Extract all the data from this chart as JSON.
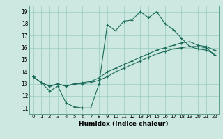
{
  "title": "",
  "xlabel": "Humidex (Indice chaleur)",
  "xlim": [
    -0.5,
    22.5
  ],
  "ylim": [
    10.5,
    19.5
  ],
  "xticks": [
    0,
    1,
    2,
    3,
    4,
    5,
    6,
    7,
    8,
    9,
    10,
    11,
    12,
    13,
    14,
    15,
    16,
    17,
    18,
    19,
    20,
    21,
    22
  ],
  "yticks": [
    11,
    12,
    13,
    14,
    15,
    16,
    17,
    18,
    19
  ],
  "background_color": "#cce8e0",
  "grid_color": "#99ccc0",
  "line_color": "#1a6b5a",
  "line1_y": [
    13.6,
    13.1,
    12.4,
    12.8,
    11.4,
    11.1,
    11.0,
    11.0,
    13.0,
    17.9,
    17.4,
    18.2,
    18.3,
    19.0,
    18.5,
    19.0,
    18.0,
    17.5,
    16.8,
    16.1,
    16.1,
    16.0,
    15.4
  ],
  "line2_y": [
    13.6,
    13.1,
    12.8,
    13.0,
    12.8,
    13.0,
    13.1,
    13.2,
    13.5,
    14.0,
    14.3,
    14.6,
    14.9,
    15.2,
    15.5,
    15.8,
    16.0,
    16.2,
    16.4,
    16.5,
    16.2,
    16.1,
    15.8
  ],
  "line3_y": [
    13.6,
    13.1,
    12.8,
    13.0,
    12.8,
    13.0,
    13.0,
    13.1,
    13.3,
    13.6,
    14.0,
    14.3,
    14.6,
    14.9,
    15.2,
    15.5,
    15.7,
    15.9,
    16.0,
    16.1,
    15.9,
    15.8,
    15.5
  ]
}
